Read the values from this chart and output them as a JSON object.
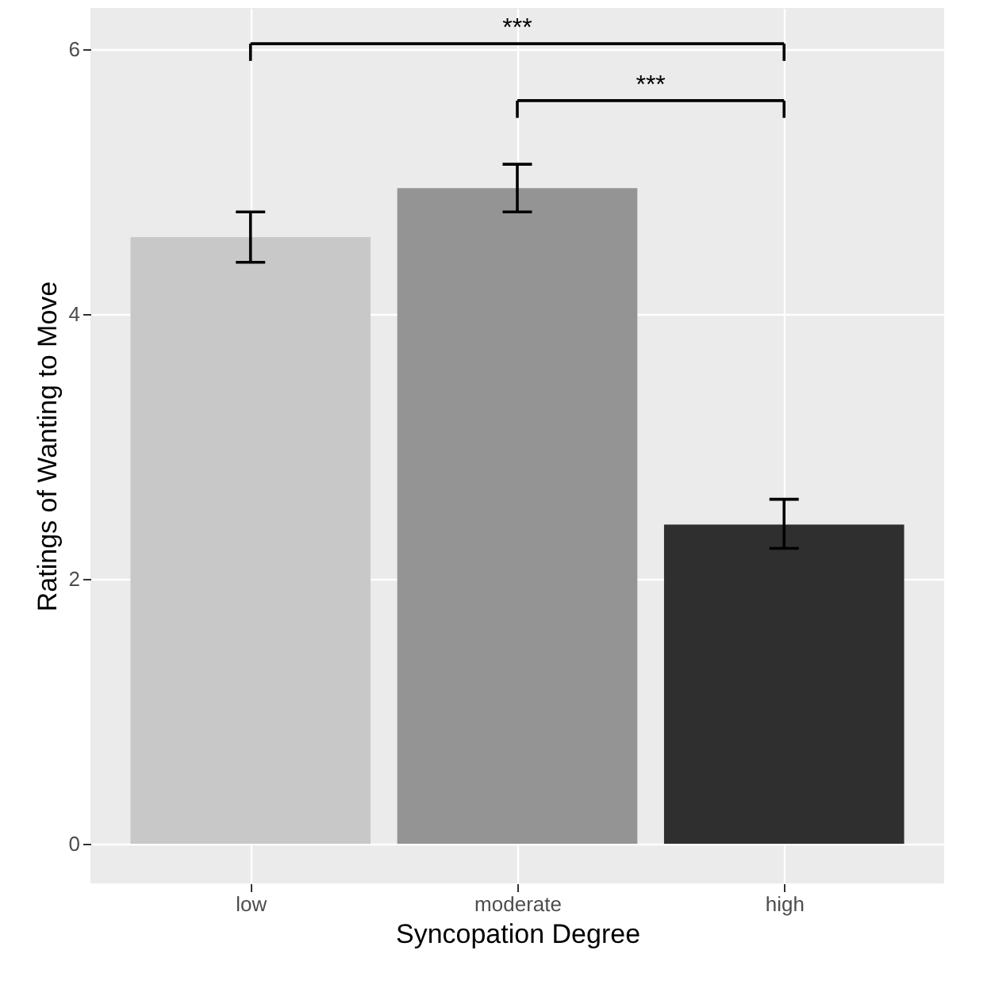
{
  "chart_data": {
    "type": "bar",
    "xlabel": "Syncopation Degree",
    "ylabel": "Ratings of Wanting to Move",
    "categories": [
      "low",
      "moderate",
      "high"
    ],
    "values": [
      4.58,
      4.95,
      2.41
    ],
    "colors": [
      "#c8c8c8",
      "#949494",
      "#2f2f2f"
    ],
    "errors": [
      [
        4.39,
        4.77
      ],
      [
        4.77,
        5.13
      ],
      [
        2.23,
        2.6
      ]
    ],
    "ylim": [
      -0.3,
      6.31
    ],
    "yticks": [
      0,
      2,
      4,
      6
    ],
    "grid": true,
    "annotations": [
      "***",
      "***"
    ]
  }
}
